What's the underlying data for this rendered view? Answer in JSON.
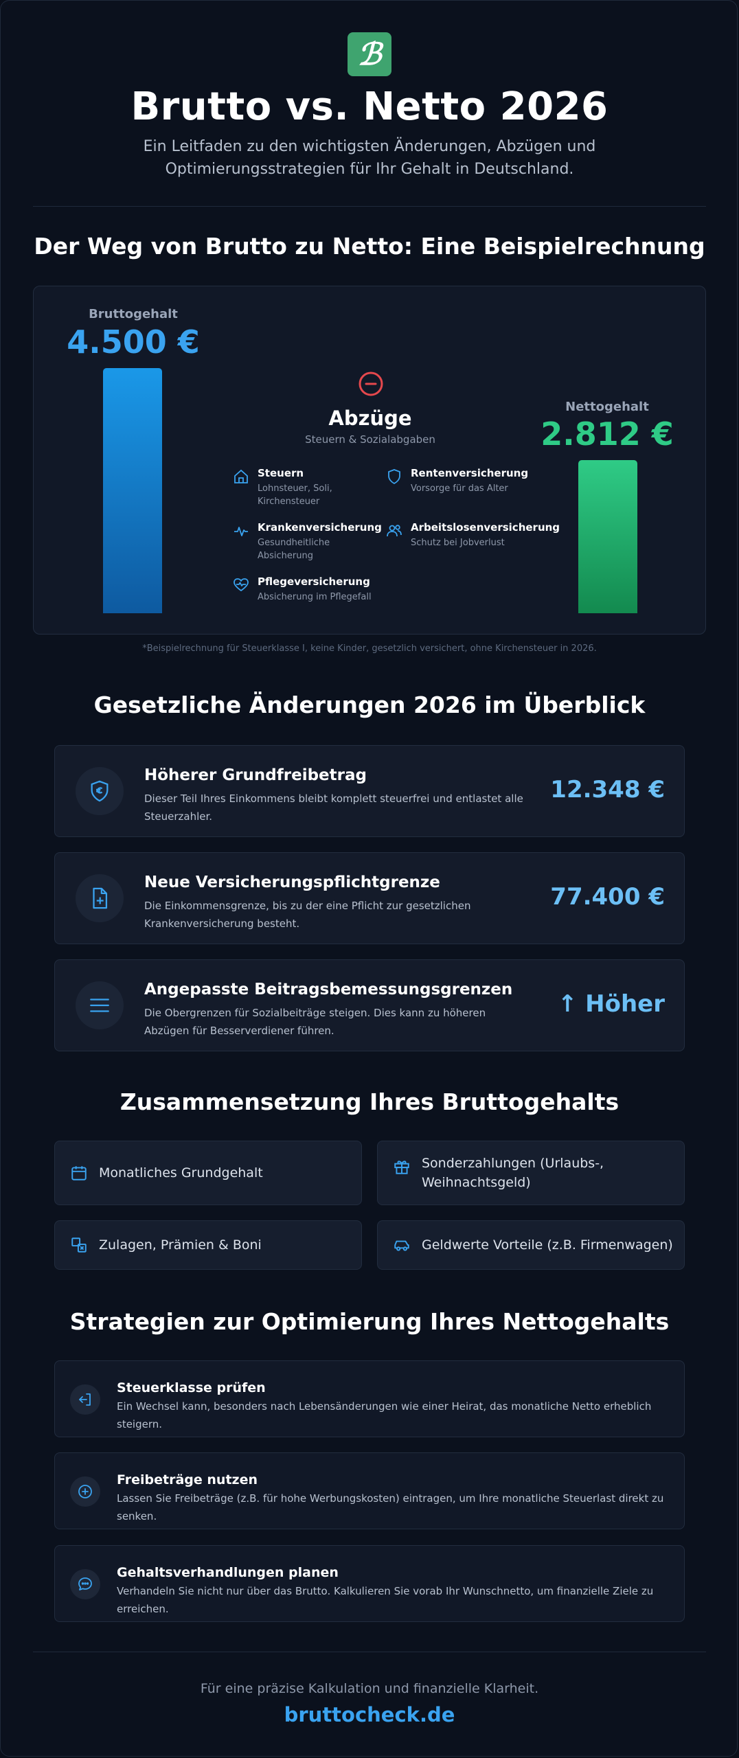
{
  "header": {
    "logo_letter": "ℬ",
    "title": "Brutto vs. Netto 2026",
    "subtitle": "Ein Leitfaden zu den wichtigsten Änderungen, Abzügen und Optimierungsstrategien für Ihr Gehalt in Deutschland."
  },
  "calculation": {
    "heading": "Der Weg von Brutto zu Netto: Eine Beispielrechnung",
    "brutto_label": "Bruttogehalt",
    "brutto_value": "4.500 €",
    "netto_label": "Nettogehalt",
    "netto_value": "2.812 €",
    "deductions_title": "Abzüge",
    "deductions_subtitle": "Steuern & Sozialabgaben",
    "deductions": [
      {
        "title": "Steuern",
        "desc": "Lohnsteuer, Soli, Kirchensteuer",
        "icon": "house-icon"
      },
      {
        "title": "Rentenversicherung",
        "desc": "Vorsorge für das Alter",
        "icon": "shield-icon"
      },
      {
        "title": "Krankenversicherung",
        "desc": "Gesundheitliche Absicherung",
        "icon": "pulse-icon"
      },
      {
        "title": "Arbeitslosenversicherung",
        "desc": "Schutz bei Jobverlust",
        "icon": "users-icon"
      },
      {
        "title": "Pflegeversicherung",
        "desc": "Absicherung im Pflegefall",
        "icon": "heart-pulse-icon"
      }
    ],
    "footnote": "*Beispielrechnung für Steuerklasse I, keine Kinder, gesetzlich versichert, ohne Kirchensteuer in 2026."
  },
  "changes": {
    "heading": "Gesetzliche Änderungen 2026 im Überblick",
    "items": [
      {
        "title": "Höherer Grundfreibetrag",
        "desc": "Dieser Teil Ihres Einkommens bleibt komplett steuerfrei und entlastet alle Steuerzahler.",
        "value": "12.348 €",
        "icon": "shield-euro-icon"
      },
      {
        "title": "Neue Versicherungspflichtgrenze",
        "desc": "Die Einkommensgrenze, bis zu der eine Pflicht zur gesetzlichen Krankenversicherung besteht.",
        "value": "77.400 €",
        "icon": "file-plus-icon"
      },
      {
        "title": "Angepasste Beitragsbemessungsgrenzen",
        "desc": "Die Obergrenzen für Sozialbeiträge steigen. Dies kann zu höheren Abzügen für Besserverdiener führen.",
        "value": "↑ Höher",
        "icon": "menu-icon"
      }
    ]
  },
  "composition": {
    "heading": "Zusammensetzung Ihres Bruttogehalts",
    "items": [
      {
        "label": "Monatliches Grundgehalt",
        "icon": "calendar-icon"
      },
      {
        "label": "Sonderzahlungen (Urlaubs-, Weihnachtsgeld)",
        "icon": "gift-icon"
      },
      {
        "label": "Zulagen, Prämien & Boni",
        "icon": "layers-icon"
      },
      {
        "label": "Geldwerte Vorteile (z.B. Firmenwagen)",
        "icon": "car-icon"
      }
    ]
  },
  "strategies": {
    "heading": "Strategien zur Optimierung Ihres Nettogehalts",
    "items": [
      {
        "title": "Steuerklasse prüfen",
        "desc": "Ein Wechsel kann, besonders nach Lebensänderungen wie einer Heirat, das monatliche Netto erheblich steigern.",
        "icon": "swap-icon"
      },
      {
        "title": "Freibeträge nutzen",
        "desc": "Lassen Sie Freibeträge (z.B. für hohe Werbungskosten) eintragen, um Ihre monatliche Steuerlast direkt zu senken.",
        "icon": "plus-circle-icon"
      },
      {
        "title": "Gehaltsverhandlungen planen",
        "desc": "Verhandeln Sie nicht nur über das Brutto. Kalkulieren Sie vorab Ihr Wunschnetto, um finanzielle Ziele zu erreichen.",
        "icon": "chat-icon"
      }
    ]
  },
  "footer": {
    "text": "Für eine präzise Kalkulation und finanzielle Klarheit.",
    "link": "bruttocheck.de"
  },
  "colors": {
    "accent_blue": "#3aa3f0",
    "accent_green": "#2fcb86",
    "minus_red": "#e5484d",
    "logo_green": "#3fa46f"
  }
}
